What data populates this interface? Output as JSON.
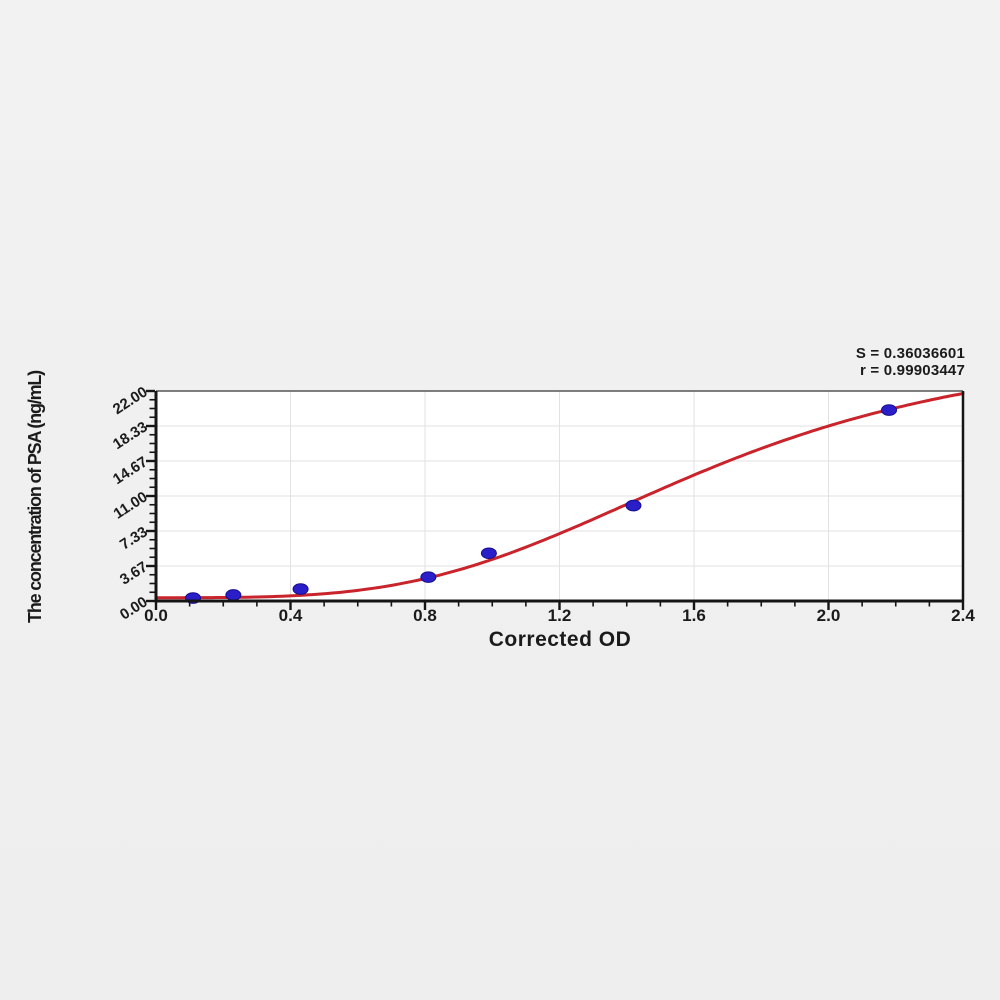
{
  "annotation": {
    "s_line": "S = 0.36036601",
    "r_line": "r = 0.99903447"
  },
  "chart_data": {
    "type": "scatter",
    "title": "",
    "xlabel": "Corrected OD",
    "ylabel": "The concentration of PSA (ng/mL)",
    "xlim": [
      0.0,
      2.4
    ],
    "ylim": [
      0.0,
      22.0
    ],
    "grid": true,
    "legend": null,
    "x_major_ticks": [
      0.0,
      0.4,
      0.8,
      1.2,
      1.6,
      2.0,
      2.4
    ],
    "x_tick_labels": [
      "0.0",
      "0.4",
      "0.8",
      "1.2",
      "1.6",
      "2.0",
      "2.4"
    ],
    "x_minor_step": 0.1,
    "y_major_ticks": [
      0.0,
      3.6667,
      7.3333,
      11.0,
      14.6667,
      18.3333,
      22.0
    ],
    "y_tick_labels": [
      "0.00",
      "3.67",
      "7.33",
      "11.00",
      "14.67",
      "18.33",
      "22.00"
    ],
    "y_minor_per_major": 4,
    "points": [
      {
        "x": 0.11,
        "y": 0.31
      },
      {
        "x": 0.23,
        "y": 0.63
      },
      {
        "x": 0.43,
        "y": 1.25
      },
      {
        "x": 0.81,
        "y": 2.5
      },
      {
        "x": 0.99,
        "y": 5.0
      },
      {
        "x": 1.42,
        "y": 10.0
      },
      {
        "x": 2.18,
        "y": 20.0
      }
    ],
    "fit_curve": {
      "model": "4PL",
      "a": 0.35,
      "b": 3.5,
      "c": 1.65,
      "d": 27.5
    },
    "stats": {
      "S": "0.36036601",
      "r": "0.99903447"
    },
    "colors": {
      "curve": "#c9232b",
      "point_fill": "#2a1ec8",
      "point_edge": "#150e8f",
      "grid": "#e2e2e2",
      "axis": "#151515",
      "axis_top": "#555555",
      "plot_bg": "#ffffff"
    }
  }
}
